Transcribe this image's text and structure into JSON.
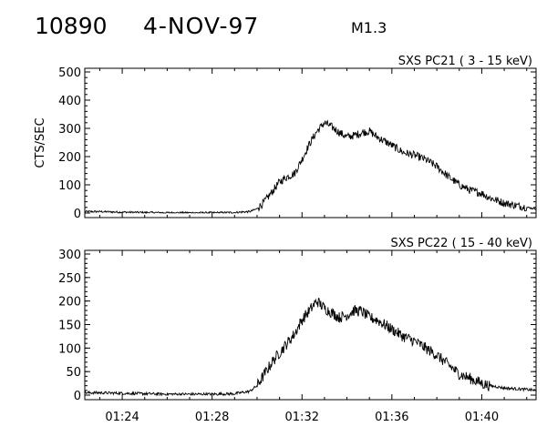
{
  "header": {
    "event_id": "10890",
    "date": "4-NOV-97",
    "flare_class": "M1.3"
  },
  "colors": {
    "ink": "#000000",
    "background": "#ffffff"
  },
  "chart_data": [
    {
      "type": "line",
      "title": "SXS PC21  (  3 - 15 keV)",
      "ylabel": "CTS/SEC",
      "xlabel": "",
      "ylim": [
        0,
        500
      ],
      "xlim": [
        "01:22:20",
        "01:42:25"
      ],
      "yticks": [
        "0",
        "100",
        "200",
        "300",
        "400",
        "500"
      ],
      "xticks": [],
      "grid": false,
      "series": [
        {
          "x": [
            "01:22:20",
            "01:23:00",
            "01:24:00",
            "01:25:00",
            "01:26:00",
            "01:27:00",
            "01:28:00",
            "01:29:00",
            "01:29:40",
            "01:30:00",
            "01:30:20",
            "01:30:40",
            "01:31:00",
            "01:31:20",
            "01:31:40",
            "01:32:00",
            "01:32:20",
            "01:32:40",
            "01:33:00",
            "01:33:20",
            "01:33:40",
            "01:34:00",
            "01:34:20",
            "01:34:40",
            "01:35:00",
            "01:35:20",
            "01:35:40",
            "01:36:00",
            "01:36:30",
            "01:37:00",
            "01:37:30",
            "01:38:00",
            "01:38:30",
            "01:39:00",
            "01:39:30",
            "01:40:00",
            "01:40:20",
            "01:40:40",
            "01:41:00",
            "01:41:20",
            "01:41:40",
            "01:42:00",
            "01:42:25"
          ],
          "values": [
            5,
            5,
            3,
            2,
            1,
            1,
            1,
            2,
            5,
            15,
            40,
            75,
            110,
            128,
            140,
            190,
            245,
            290,
            320,
            305,
            285,
            270,
            275,
            285,
            290,
            270,
            255,
            240,
            215,
            205,
            190,
            165,
            130,
            100,
            80,
            70,
            55,
            45,
            35,
            30,
            25,
            20,
            15
          ],
          "noise": 14
        }
      ]
    },
    {
      "type": "line",
      "title": "SXS PC22  ( 15 - 40 keV)",
      "ylabel": "",
      "xlabel": "",
      "ylim": [
        0,
        300
      ],
      "xlim": [
        "01:22:20",
        "01:42:25"
      ],
      "yticks": [
        "0",
        "50",
        "100",
        "150",
        "200",
        "250",
        "300"
      ],
      "xticks": [
        "01:24",
        "01:28",
        "01:32",
        "01:36",
        "01:40"
      ],
      "grid": false,
      "series": [
        {
          "x": [
            "01:22:20",
            "01:23:00",
            "01:24:00",
            "01:25:00",
            "01:26:00",
            "01:27:00",
            "01:28:00",
            "01:29:00",
            "01:29:40",
            "01:30:00",
            "01:30:20",
            "01:30:40",
            "01:31:00",
            "01:31:20",
            "01:31:40",
            "01:32:00",
            "01:32:20",
            "01:32:40",
            "01:33:00",
            "01:33:20",
            "01:33:40",
            "01:34:00",
            "01:34:20",
            "01:34:40",
            "01:35:00",
            "01:35:20",
            "01:35:40",
            "01:36:00",
            "01:36:30",
            "01:37:00",
            "01:37:30",
            "01:38:00",
            "01:38:30",
            "01:39:00",
            "01:39:30",
            "01:40:00",
            "01:40:20",
            "01:40:40",
            "01:41:00",
            "01:41:20",
            "01:41:40",
            "01:42:00",
            "01:42:25"
          ],
          "values": [
            5,
            5,
            4,
            3,
            2,
            2,
            2,
            3,
            8,
            20,
            45,
            70,
            90,
            110,
            130,
            160,
            180,
            200,
            185,
            175,
            165,
            170,
            180,
            178,
            165,
            160,
            150,
            140,
            125,
            115,
            100,
            85,
            65,
            45,
            35,
            25,
            20,
            18,
            15,
            14,
            13,
            12,
            10
          ],
          "noise": 12
        }
      ]
    }
  ]
}
